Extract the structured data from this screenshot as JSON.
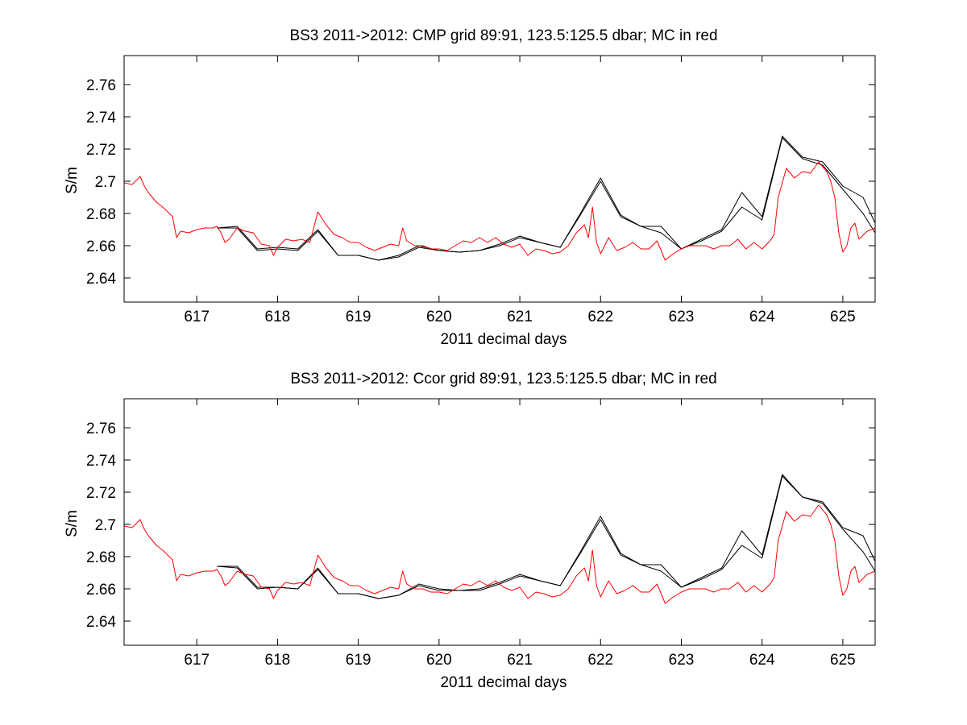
{
  "chart_data": [
    {
      "type": "line",
      "title": "BS3 2011->2012: CMP grid 89:91, 123.5:125.5 dbar; MC in red",
      "xlabel": "2011 decimal days",
      "ylabel": "S/m",
      "xlim": [
        616.1,
        625.4
      ],
      "ylim": [
        2.625,
        2.778
      ],
      "xticks": [
        617,
        618,
        619,
        620,
        621,
        622,
        623,
        624,
        625
      ],
      "yticks": [
        2.64,
        2.66,
        2.68,
        2.7,
        2.72,
        2.74,
        2.76
      ],
      "ytick_labels": [
        "2.64",
        "2.66",
        "2.68",
        "2.7",
        "2.72",
        "2.74",
        "2.76"
      ],
      "grid": false,
      "legend": "none",
      "colors": {
        "mc": "#ff0000",
        "grid": "#000000"
      },
      "series": [
        {
          "color": "#000000",
          "x": [
            617.25,
            617.5,
            617.75,
            618.0,
            618.25,
            618.5,
            618.75,
            619.0,
            619.25,
            619.5,
            619.75,
            620.0,
            620.25,
            620.5,
            620.75,
            621.0,
            621.25,
            621.5,
            621.75,
            622.0,
            622.25,
            622.5,
            622.75,
            623.0,
            623.25,
            623.5,
            623.75,
            624.0,
            624.25,
            624.5,
            624.75,
            625.0,
            625.25,
            625.4
          ],
          "y": [
            2.671,
            2.672,
            2.658,
            2.659,
            2.658,
            2.67,
            2.654,
            2.654,
            2.651,
            2.654,
            2.66,
            2.657,
            2.656,
            2.657,
            2.661,
            2.666,
            2.662,
            2.659,
            2.68,
            2.702,
            2.679,
            2.672,
            2.672,
            2.658,
            2.664,
            2.67,
            2.693,
            2.678,
            2.728,
            2.715,
            2.712,
            2.697,
            2.69,
            2.674
          ]
        },
        {
          "color": "#000000",
          "x": [
            617.25,
            617.5,
            617.75,
            618.0,
            618.25,
            618.5,
            618.75,
            619.0,
            619.25,
            619.5,
            619.75,
            620.0,
            620.25,
            620.5,
            620.75,
            621.0,
            621.25,
            621.5,
            621.75,
            622.0,
            622.25,
            622.5,
            622.75,
            623.0,
            623.25,
            623.5,
            623.75,
            624.0,
            624.25,
            624.5,
            624.75,
            625.0,
            625.25,
            625.4
          ],
          "y": [
            2.671,
            2.671,
            2.657,
            2.658,
            2.657,
            2.669,
            2.654,
            2.654,
            2.651,
            2.653,
            2.659,
            2.657,
            2.656,
            2.657,
            2.66,
            2.665,
            2.662,
            2.659,
            2.679,
            2.7,
            2.678,
            2.672,
            2.668,
            2.658,
            2.663,
            2.669,
            2.684,
            2.676,
            2.727,
            2.714,
            2.71,
            2.695,
            2.68,
            2.668
          ]
        },
        {
          "color": "#ff0000",
          "x": [
            616.1,
            616.2,
            616.3,
            616.35,
            616.4,
            616.5,
            616.6,
            616.7,
            616.75,
            616.8,
            616.9,
            617.0,
            617.1,
            617.2,
            617.25,
            617.3,
            617.35,
            617.4,
            617.5,
            617.6,
            617.7,
            617.8,
            617.9,
            617.95,
            618.0,
            618.1,
            618.2,
            618.3,
            618.4,
            618.5,
            618.6,
            618.7,
            618.8,
            618.9,
            619.0,
            619.1,
            619.2,
            619.3,
            619.4,
            619.5,
            619.55,
            619.6,
            619.7,
            619.8,
            619.9,
            620.0,
            620.1,
            620.2,
            620.3,
            620.4,
            620.5,
            620.6,
            620.7,
            620.8,
            620.9,
            621.0,
            621.1,
            621.2,
            621.3,
            621.4,
            621.5,
            621.6,
            621.7,
            621.8,
            621.85,
            621.9,
            621.95,
            622.0,
            622.1,
            622.2,
            622.3,
            622.4,
            622.5,
            622.6,
            622.7,
            622.8,
            622.9,
            623.0,
            623.1,
            623.2,
            623.3,
            623.4,
            623.5,
            623.6,
            623.7,
            623.8,
            623.9,
            624.0,
            624.1,
            624.15,
            624.2,
            624.3,
            624.4,
            624.5,
            624.6,
            624.7,
            624.8,
            624.85,
            624.9,
            624.95,
            625.0,
            625.05,
            625.1,
            625.15,
            625.2,
            625.3,
            625.4
          ],
          "y": [
            2.699,
            2.698,
            2.703,
            2.697,
            2.693,
            2.687,
            2.683,
            2.678,
            2.665,
            2.669,
            2.668,
            2.67,
            2.671,
            2.671,
            2.672,
            2.668,
            2.662,
            2.664,
            2.671,
            2.669,
            2.668,
            2.661,
            2.66,
            2.654,
            2.659,
            2.664,
            2.663,
            2.664,
            2.662,
            2.681,
            2.673,
            2.667,
            2.665,
            2.662,
            2.662,
            2.659,
            2.657,
            2.659,
            2.661,
            2.66,
            2.671,
            2.663,
            2.66,
            2.66,
            2.658,
            2.658,
            2.657,
            2.66,
            2.663,
            2.662,
            2.665,
            2.662,
            2.665,
            2.661,
            2.659,
            2.661,
            2.654,
            2.658,
            2.657,
            2.655,
            2.656,
            2.66,
            2.668,
            2.673,
            2.665,
            2.684,
            2.662,
            2.655,
            2.665,
            2.657,
            2.659,
            2.662,
            2.658,
            2.658,
            2.663,
            2.651,
            2.655,
            2.658,
            2.66,
            2.66,
            2.66,
            2.658,
            2.66,
            2.66,
            2.664,
            2.658,
            2.662,
            2.658,
            2.663,
            2.667,
            2.69,
            2.708,
            2.702,
            2.706,
            2.705,
            2.712,
            2.706,
            2.7,
            2.69,
            2.668,
            2.656,
            2.66,
            2.671,
            2.674,
            2.664,
            2.669,
            2.671
          ]
        }
      ]
    },
    {
      "type": "line",
      "title": "BS3 2011->2012: Ccor grid 89:91, 123.5:125.5 dbar; MC in red",
      "xlabel": "2011 decimal days",
      "ylabel": "S/m",
      "xlim": [
        616.1,
        625.4
      ],
      "ylim": [
        2.625,
        2.778
      ],
      "xticks": [
        617,
        618,
        619,
        620,
        621,
        622,
        623,
        624,
        625
      ],
      "yticks": [
        2.64,
        2.66,
        2.68,
        2.7,
        2.72,
        2.74,
        2.76
      ],
      "ytick_labels": [
        "2.64",
        "2.66",
        "2.68",
        "2.7",
        "2.72",
        "2.74",
        "2.76"
      ],
      "grid": false,
      "legend": "none",
      "colors": {
        "mc": "#ff0000",
        "grid": "#000000"
      },
      "series": [
        {
          "color": "#000000",
          "x": [
            617.25,
            617.5,
            617.75,
            618.0,
            618.25,
            618.5,
            618.75,
            619.0,
            619.25,
            619.5,
            619.75,
            620.0,
            620.25,
            620.5,
            620.75,
            621.0,
            621.25,
            621.5,
            621.75,
            622.0,
            622.25,
            622.5,
            622.75,
            623.0,
            623.25,
            623.5,
            623.75,
            624.0,
            624.25,
            624.5,
            624.75,
            625.0,
            625.25,
            625.4
          ],
          "y": [
            2.674,
            2.674,
            2.661,
            2.661,
            2.66,
            2.673,
            2.657,
            2.657,
            2.654,
            2.656,
            2.663,
            2.66,
            2.659,
            2.66,
            2.664,
            2.669,
            2.665,
            2.662,
            2.683,
            2.705,
            2.682,
            2.675,
            2.675,
            2.661,
            2.667,
            2.673,
            2.696,
            2.681,
            2.731,
            2.717,
            2.714,
            2.698,
            2.693,
            2.677
          ]
        },
        {
          "color": "#000000",
          "x": [
            617.25,
            617.5,
            617.75,
            618.0,
            618.25,
            618.5,
            618.75,
            619.0,
            619.25,
            619.5,
            619.75,
            620.0,
            620.25,
            620.5,
            620.75,
            621.0,
            621.25,
            621.5,
            621.75,
            622.0,
            622.25,
            622.5,
            622.75,
            623.0,
            623.25,
            623.5,
            623.75,
            624.0,
            624.25,
            624.5,
            624.75,
            625.0,
            625.25,
            625.4
          ],
          "y": [
            2.674,
            2.673,
            2.66,
            2.661,
            2.66,
            2.672,
            2.657,
            2.657,
            2.654,
            2.656,
            2.662,
            2.659,
            2.659,
            2.659,
            2.663,
            2.668,
            2.665,
            2.662,
            2.682,
            2.703,
            2.681,
            2.675,
            2.671,
            2.661,
            2.666,
            2.672,
            2.687,
            2.679,
            2.73,
            2.717,
            2.713,
            2.697,
            2.683,
            2.671
          ]
        },
        {
          "color": "#ff0000",
          "x": [
            616.1,
            616.2,
            616.3,
            616.35,
            616.4,
            616.5,
            616.6,
            616.7,
            616.75,
            616.8,
            616.9,
            617.0,
            617.1,
            617.2,
            617.25,
            617.3,
            617.35,
            617.4,
            617.5,
            617.6,
            617.7,
            617.8,
            617.9,
            617.95,
            618.0,
            618.1,
            618.2,
            618.3,
            618.4,
            618.5,
            618.6,
            618.7,
            618.8,
            618.9,
            619.0,
            619.1,
            619.2,
            619.3,
            619.4,
            619.5,
            619.55,
            619.6,
            619.7,
            619.8,
            619.9,
            620.0,
            620.1,
            620.2,
            620.3,
            620.4,
            620.5,
            620.6,
            620.7,
            620.8,
            620.9,
            621.0,
            621.1,
            621.2,
            621.3,
            621.4,
            621.5,
            621.6,
            621.7,
            621.8,
            621.85,
            621.9,
            621.95,
            622.0,
            622.1,
            622.2,
            622.3,
            622.4,
            622.5,
            622.6,
            622.7,
            622.8,
            622.9,
            623.0,
            623.1,
            623.2,
            623.3,
            623.4,
            623.5,
            623.6,
            623.7,
            623.8,
            623.9,
            624.0,
            624.1,
            624.15,
            624.2,
            624.3,
            624.4,
            624.5,
            624.6,
            624.7,
            624.8,
            624.85,
            624.9,
            624.95,
            625.0,
            625.05,
            625.1,
            625.15,
            625.2,
            625.3,
            625.4
          ],
          "y": [
            2.699,
            2.698,
            2.703,
            2.697,
            2.693,
            2.687,
            2.683,
            2.678,
            2.665,
            2.669,
            2.668,
            2.67,
            2.671,
            2.671,
            2.672,
            2.668,
            2.662,
            2.664,
            2.671,
            2.669,
            2.668,
            2.661,
            2.66,
            2.654,
            2.659,
            2.664,
            2.663,
            2.664,
            2.662,
            2.681,
            2.673,
            2.667,
            2.665,
            2.662,
            2.662,
            2.659,
            2.657,
            2.659,
            2.661,
            2.66,
            2.671,
            2.663,
            2.66,
            2.66,
            2.658,
            2.658,
            2.657,
            2.66,
            2.663,
            2.662,
            2.665,
            2.662,
            2.665,
            2.661,
            2.659,
            2.661,
            2.654,
            2.658,
            2.657,
            2.655,
            2.656,
            2.66,
            2.668,
            2.673,
            2.665,
            2.684,
            2.662,
            2.655,
            2.665,
            2.657,
            2.659,
            2.662,
            2.658,
            2.658,
            2.663,
            2.651,
            2.655,
            2.658,
            2.66,
            2.66,
            2.66,
            2.658,
            2.66,
            2.66,
            2.664,
            2.658,
            2.662,
            2.658,
            2.663,
            2.667,
            2.69,
            2.708,
            2.702,
            2.706,
            2.705,
            2.712,
            2.706,
            2.7,
            2.69,
            2.668,
            2.656,
            2.66,
            2.671,
            2.674,
            2.664,
            2.669,
            2.671
          ]
        }
      ]
    }
  ]
}
